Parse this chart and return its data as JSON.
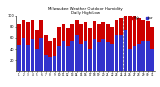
{
  "title": "Milwaukee Weather Outdoor Humidity",
  "subtitle": "Daily High/Low",
  "high_values": [
    85,
    93,
    88,
    93,
    75,
    93,
    65,
    55,
    60,
    80,
    85,
    78,
    85,
    93,
    85,
    88,
    78,
    90,
    85,
    88,
    85,
    80,
    93,
    95,
    100,
    100,
    100,
    95,
    93,
    90,
    80
  ],
  "low_values": [
    48,
    60,
    48,
    58,
    40,
    60,
    30,
    25,
    28,
    45,
    55,
    45,
    55,
    65,
    50,
    55,
    40,
    58,
    52,
    58,
    52,
    50,
    65,
    65,
    75,
    40,
    45,
    50,
    55,
    55,
    40
  ],
  "xlabels": [
    "1",
    "2",
    "3",
    "4",
    "5",
    "6",
    "7",
    "8",
    "9",
    "10",
    "11",
    "12",
    "13",
    "14",
    "15",
    "16",
    "17",
    "18",
    "19",
    "20",
    "21",
    "22",
    "23",
    "24",
    "25",
    "26",
    "27",
    "28",
    "29",
    "30",
    "31"
  ],
  "high_color": "#cc0000",
  "low_color": "#3333cc",
  "dashed_line_x": 24,
  "ylim": [
    0,
    100
  ],
  "yticks": [
    20,
    40,
    60,
    80,
    100
  ],
  "background_color": "#ffffff",
  "bar_width": 0.42,
  "legend_high": "High",
  "legend_low": "Low"
}
